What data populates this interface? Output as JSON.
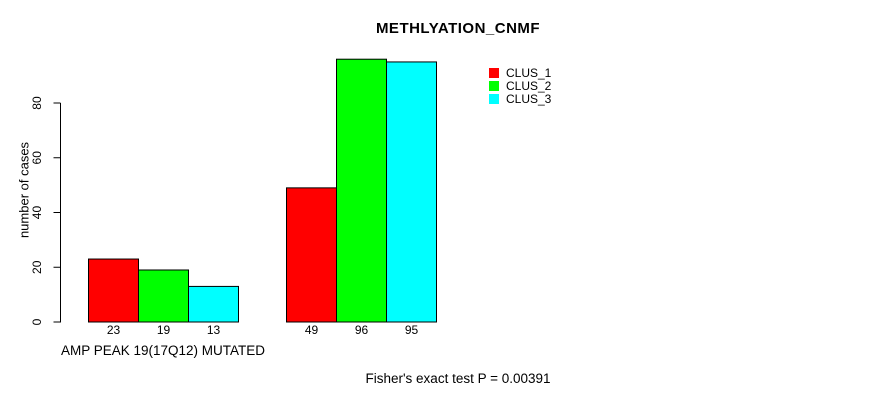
{
  "chart_data": {
    "type": "bar",
    "title": "METHLYATION_CNMF",
    "ylabel": "number of cases",
    "xlabel": "",
    "ylim": [
      0,
      80
    ],
    "yticks": [
      0,
      20,
      40,
      60,
      80
    ],
    "grid": false,
    "legend_position": "top-right-outside",
    "categories": [
      "AMP PEAK 19(17Q12) MUTATED",
      ""
    ],
    "series": [
      {
        "name": "CLUS_1",
        "color": "#ff0000",
        "values": [
          23,
          49
        ]
      },
      {
        "name": "CLUS_2",
        "color": "#00ff00",
        "values": [
          19,
          96
        ]
      },
      {
        "name": "CLUS_3",
        "color": "#00ffff",
        "values": [
          13,
          95
        ]
      }
    ],
    "bar_value_labels_shown": true,
    "annotation": "Fisher's exact test P = 0.00391",
    "colors": {
      "background": "#ffffff",
      "axis": "#000000",
      "text": "#000000",
      "bar_border": "#000000"
    }
  }
}
